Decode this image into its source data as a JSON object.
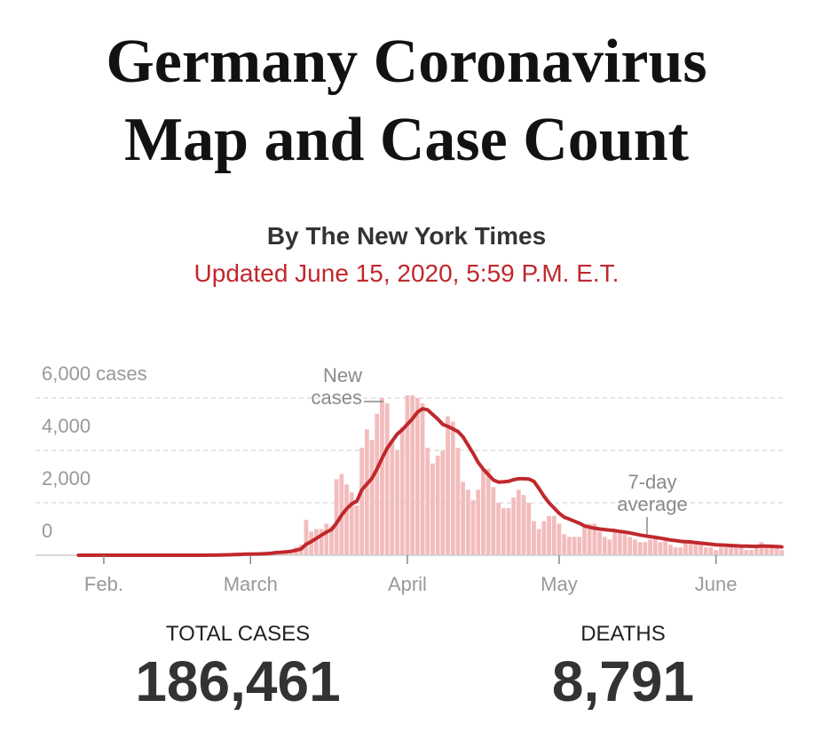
{
  "header": {
    "title": "Germany Coronavirus Map and Case Count",
    "byline": "By The New York Times",
    "updated": "Updated June 15, 2020, 5:59 P.M. E.T."
  },
  "chart_data": {
    "type": "bar",
    "categories": [
      null,
      null,
      null,
      null,
      null,
      "Feb.",
      null,
      null,
      null,
      null,
      null,
      null,
      null,
      null,
      null,
      null,
      null,
      null,
      null,
      null,
      null,
      null,
      null,
      null,
      null,
      null,
      null,
      null,
      null,
      null,
      null,
      null,
      null,
      null,
      "March",
      null,
      null,
      null,
      null,
      null,
      null,
      null,
      null,
      null,
      null,
      null,
      null,
      null,
      null,
      null,
      null,
      null,
      null,
      null,
      null,
      null,
      null,
      null,
      null,
      null,
      null,
      null,
      null,
      null,
      null,
      "April",
      null,
      null,
      null,
      null,
      null,
      null,
      null,
      null,
      null,
      null,
      null,
      null,
      null,
      null,
      null,
      null,
      null,
      null,
      null,
      null,
      null,
      null,
      null,
      null,
      null,
      null,
      null,
      null,
      null,
      "May",
      null,
      null,
      null,
      null,
      null,
      null,
      null,
      null,
      null,
      null,
      null,
      null,
      null,
      null,
      null,
      null,
      null,
      null,
      null,
      null,
      null,
      null,
      null,
      null,
      null,
      null,
      null,
      null,
      null,
      null,
      "June",
      null,
      null,
      null,
      null,
      null,
      null,
      null,
      null,
      null,
      null,
      null,
      null,
      null
    ],
    "series": [
      {
        "name": "New cases",
        "type": "bar",
        "color": "#f3bcbc",
        "values": [
          0,
          0,
          0,
          0,
          0,
          0,
          0,
          0,
          0,
          0,
          0,
          0,
          0,
          0,
          0,
          0,
          0,
          0,
          0,
          0,
          0,
          0,
          0,
          0,
          0,
          0,
          10,
          20,
          30,
          20,
          50,
          40,
          60,
          60,
          50,
          30,
          50,
          90,
          100,
          170,
          120,
          150,
          200,
          300,
          400,
          1350,
          900,
          1000,
          1000,
          1200,
          1100,
          2900,
          3100,
          2700,
          2400,
          1900,
          4100,
          4800,
          4400,
          5400,
          6000,
          5800,
          4400,
          4000,
          4900,
          6100,
          6100,
          6000,
          5800,
          4100,
          3500,
          3800,
          4000,
          5300,
          5100,
          4100,
          2800,
          2500,
          2100,
          2500,
          3300,
          3300,
          2600,
          2000,
          1800,
          1800,
          2200,
          2500,
          2300,
          2000,
          1300,
          1000,
          1300,
          1500,
          1500,
          1200,
          800,
          700,
          700,
          700,
          1100,
          1200,
          1200,
          900,
          700,
          600,
          900,
          900,
          800,
          700,
          600,
          500,
          500,
          600,
          700,
          500,
          600,
          400,
          300,
          300,
          500,
          500,
          500,
          400,
          300,
          300,
          200,
          300,
          300,
          400,
          400,
          300,
          200,
          200,
          300,
          500,
          400,
          400,
          300,
          200
        ]
      },
      {
        "name": "7-day average",
        "type": "line",
        "color": "#c0282c",
        "values": [
          0,
          0,
          0,
          0,
          0,
          0,
          0,
          0,
          0,
          0,
          0,
          0,
          0,
          0,
          0,
          0,
          0,
          0,
          0,
          0,
          0,
          0,
          0,
          0,
          0,
          0,
          2,
          5,
          8,
          12,
          18,
          25,
          32,
          40,
          45,
          48,
          52,
          60,
          70,
          100,
          110,
          130,
          150,
          190,
          240,
          420,
          520,
          640,
          760,
          880,
          980,
          1220,
          1530,
          1770,
          1960,
          2060,
          2490,
          2720,
          2930,
          3290,
          3700,
          4070,
          4360,
          4620,
          4790,
          5000,
          5200,
          5460,
          5590,
          5550,
          5370,
          5200,
          4990,
          4920,
          4820,
          4720,
          4520,
          4200,
          3890,
          3540,
          3280,
          3080,
          2870,
          2790,
          2800,
          2820,
          2880,
          2920,
          2920,
          2910,
          2820,
          2550,
          2250,
          2000,
          1800,
          1600,
          1450,
          1380,
          1300,
          1220,
          1120,
          1070,
          1030,
          1000,
          980,
          960,
          940,
          910,
          880,
          850,
          810,
          770,
          740,
          710,
          680,
          650,
          620,
          580,
          560,
          530,
          520,
          510,
          480,
          460,
          440,
          420,
          400,
          390,
          380,
          370,
          360,
          350,
          345,
          340,
          340,
          350,
          350,
          340,
          330,
          320
        ]
      }
    ],
    "ylim": [
      0,
      6000
    ],
    "yticks": [
      0,
      {
        "value": 2000,
        "label": "2,000"
      },
      {
        "value": 4000,
        "label": "4,000"
      },
      {
        "value": 6000,
        "label": "6,000 cases"
      }
    ],
    "grid": true
  },
  "stats": [
    {
      "label": "TOTAL CASES",
      "value": "186,461"
    },
    {
      "label": "DEATHS",
      "value": "8,791"
    }
  ]
}
